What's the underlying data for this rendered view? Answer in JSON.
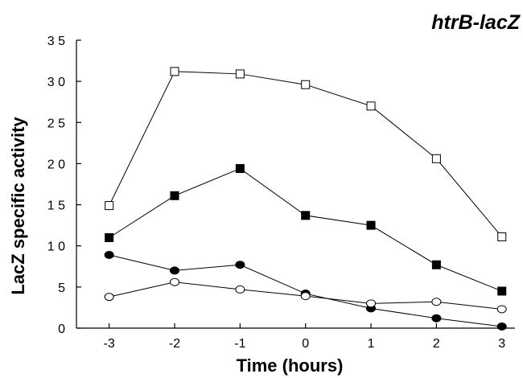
{
  "chart_data": {
    "type": "line",
    "title": "htrB-lacZ",
    "xlabel": "Time (hours)",
    "ylabel": "LacZ specific activity",
    "x": [
      -3,
      -2,
      -1,
      0,
      1,
      2,
      3
    ],
    "x_tick_labels": [
      "-3",
      "-2",
      "-1",
      "0",
      "1",
      "2",
      "3"
    ],
    "y_tick_labels": [
      "0",
      "5",
      "1 0",
      "1 5",
      "2 0",
      "2 5",
      "3 0",
      "3 5"
    ],
    "xlim": [
      -3.5,
      3.2
    ],
    "ylim": [
      0,
      35
    ],
    "grid": false,
    "legend": "none",
    "series": [
      {
        "marker": "open-square",
        "values": [
          14.9,
          31.2,
          30.9,
          29.6,
          27.0,
          20.6,
          11.1
        ]
      },
      {
        "marker": "filled-square",
        "values": [
          11.0,
          16.1,
          19.4,
          13.7,
          12.5,
          7.7,
          4.5
        ]
      },
      {
        "marker": "filled-circle",
        "values": [
          8.9,
          7.0,
          7.7,
          4.2,
          2.4,
          1.2,
          0.2
        ]
      },
      {
        "marker": "open-circle",
        "values": [
          3.8,
          5.6,
          4.7,
          3.9,
          3.0,
          3.2,
          2.3
        ]
      }
    ],
    "colors": {
      "line": "#000000",
      "marker_fill": "#000000",
      "marker_open": "#ffffff"
    }
  }
}
